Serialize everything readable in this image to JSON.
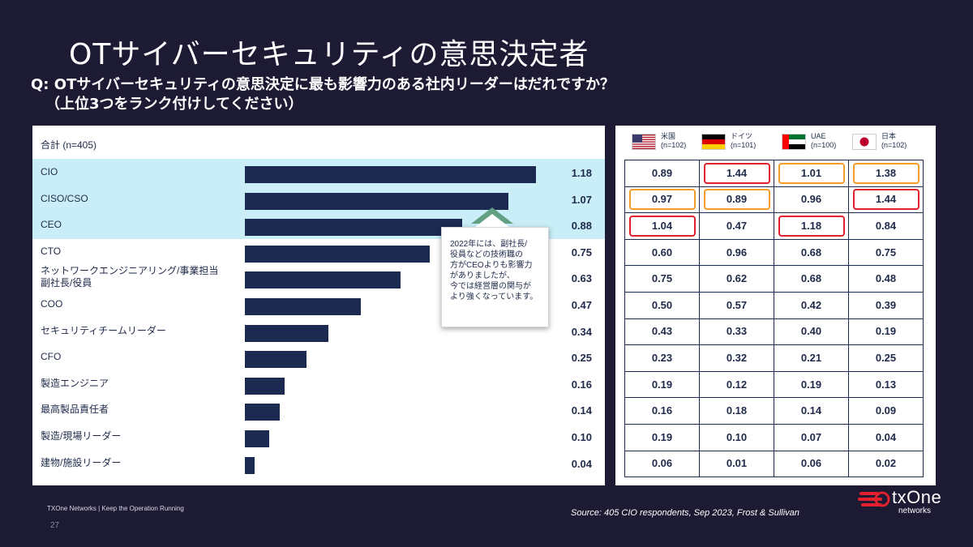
{
  "slide": {
    "title": "OTサイバーセキュリティの意思決定者",
    "question_line1": "Q: OTサイバーセキュリティの意思決定に最も影響力のある社内リーダーはだれですか？",
    "question_line2": "（上位3つをランク付けしてください）"
  },
  "callout": {
    "lines": [
      "2022年には、副社長/",
      "役員などの技術職の",
      "方がCEOよりも影響力",
      "がありましたが、",
      "今では経営層の関与が",
      "より強くなっています。"
    ]
  },
  "chart_data": [
    {
      "type": "bar",
      "title": "合計 (n=405)",
      "orientation": "horizontal",
      "categories": [
        "CIO",
        "CISO/CSO",
        "CEO",
        "CTO",
        "ネットワークエンジニアリング/事業担当 副社長/役員",
        "COO",
        "セキュリティチームリーダー",
        "CFO",
        "製造エンジニア",
        "最高製品責任者",
        "製造/現場リーダー",
        "建物/施設リーダー"
      ],
      "values": [
        1.18,
        1.07,
        0.88,
        0.75,
        0.63,
        0.47,
        0.34,
        0.25,
        0.16,
        0.14,
        0.1,
        0.04
      ],
      "value_labels": [
        "1.18",
        "1.07",
        "0.88",
        "0.75",
        "0.63",
        "0.47",
        "0.34",
        "0.25",
        "0.16",
        "0.14",
        "0.10",
        "0.04"
      ],
      "highlighted_categories": [
        "CIO",
        "CISO/CSO",
        "CEO"
      ],
      "bar_color": "#1c2951",
      "highlight_color": "#c9eef7"
    },
    {
      "type": "table",
      "columns": [
        {
          "name": "米国",
          "n": "(n=102)",
          "flag": "us-flag-icon"
        },
        {
          "name": "ドイツ",
          "n": "(n=101)",
          "flag": "germany-flag-icon"
        },
        {
          "name": "UAE",
          "n": "(n=100)",
          "flag": "uae-flag-icon"
        },
        {
          "name": "日本",
          "n": "(n=102)",
          "flag": "japan-flag-icon"
        }
      ],
      "rows": [
        [
          "0.89",
          "1.44",
          "1.01",
          "1.38"
        ],
        [
          "0.97",
          "0.89",
          "0.96",
          "1.44"
        ],
        [
          "1.04",
          "0.47",
          "1.18",
          "0.84"
        ],
        [
          "0.60",
          "0.96",
          "0.68",
          "0.75"
        ],
        [
          "0.75",
          "0.62",
          "0.68",
          "0.48"
        ],
        [
          "0.50",
          "0.57",
          "0.42",
          "0.39"
        ],
        [
          "0.43",
          "0.33",
          "0.40",
          "0.19"
        ],
        [
          "0.23",
          "0.32",
          "0.21",
          "0.25"
        ],
        [
          "0.19",
          "0.12",
          "0.19",
          "0.13"
        ],
        [
          "0.16",
          "0.18",
          "0.14",
          "0.09"
        ],
        [
          "0.19",
          "0.10",
          "0.07",
          "0.04"
        ],
        [
          "0.06",
          "0.01",
          "0.06",
          "0.02"
        ]
      ],
      "marks": [
        [
          "",
          "red",
          "orange",
          "orange"
        ],
        [
          "orange",
          "orange",
          "",
          "red"
        ],
        [
          "red",
          "",
          "red",
          ""
        ],
        [
          "",
          "",
          "",
          ""
        ],
        [
          "",
          "",
          "",
          ""
        ],
        [
          "",
          "",
          "",
          ""
        ],
        [
          "",
          "",
          "",
          ""
        ],
        [
          "",
          "",
          "",
          ""
        ],
        [
          "",
          "",
          "",
          ""
        ],
        [
          "",
          "",
          "",
          ""
        ],
        [
          "",
          "",
          "",
          ""
        ],
        [
          "",
          "",
          "",
          ""
        ]
      ],
      "mark_colors": {
        "red": "#e3212e",
        "orange": "#f39c2a"
      }
    }
  ],
  "footer": {
    "company": "TXOne Networks  |  Keep the Operation Running",
    "page": "27",
    "source": "Source: 405 CIO respondents, Sep 2023, Frost & Sullivan",
    "logo_text": "txOne",
    "logo_sub": "networks"
  }
}
